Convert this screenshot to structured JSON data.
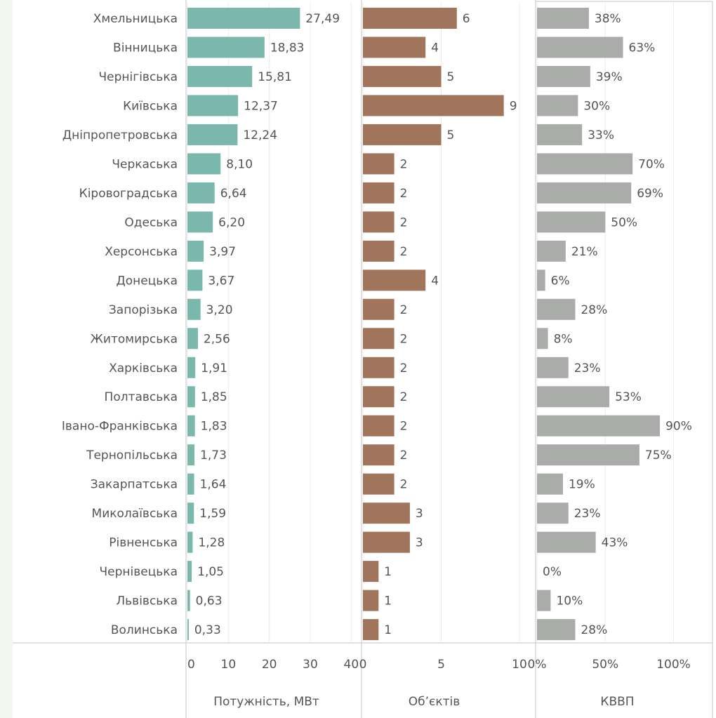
{
  "chart_data": {
    "type": "bar",
    "orientation": "horizontal",
    "grid": true,
    "categories": [
      "Хмельницька",
      "Вінницька",
      "Чернігівська",
      "Київська",
      "Дніпропетровська",
      "Черкаська",
      "Кіровоградська",
      "Одеська",
      "Херсонська",
      "Донецька",
      "Запорізька",
      "Житомирська",
      "Харківська",
      "Полтавська",
      "Івано-Франківська",
      "Тернопільська",
      "Закарпатська",
      "Миколаївська",
      "Рівненська",
      "Чернівецька",
      "Львівська",
      "Волинська"
    ],
    "series": [
      {
        "name": "Потужність, МВт",
        "color": "#7ab8ad",
        "values": [
          27.49,
          18.83,
          15.81,
          12.37,
          12.24,
          8.1,
          6.64,
          6.2,
          3.97,
          3.67,
          3.2,
          2.56,
          1.91,
          1.85,
          1.83,
          1.73,
          1.64,
          1.59,
          1.28,
          1.05,
          0.63,
          0.33
        ],
        "value_labels": [
          "27,49",
          "18,83",
          "15,81",
          "12,37",
          "12,24",
          "8,10",
          "6,64",
          "6,20",
          "3,97",
          "3,67",
          "3,20",
          "2,56",
          "1,91",
          "1,85",
          "1,83",
          "1,73",
          "1,64",
          "1,59",
          "1,28",
          "1,05",
          "0,63",
          "0,33"
        ],
        "xlim": [
          0,
          42
        ],
        "xticks": [
          0,
          10,
          20,
          30,
          40
        ]
      },
      {
        "name": "Об’єктів",
        "color": "#a0755b",
        "values": [
          6,
          4,
          5,
          9,
          5,
          2,
          2,
          2,
          2,
          4,
          2,
          2,
          2,
          2,
          2,
          2,
          2,
          3,
          3,
          1,
          1,
          1
        ],
        "xlim": [
          0,
          10
        ],
        "xticks": [
          0,
          5,
          10
        ]
      },
      {
        "name": "КВВП",
        "color": "#a9aca9",
        "values": [
          38,
          63,
          39,
          30,
          33,
          70,
          69,
          50,
          21,
          6,
          28,
          8,
          23,
          53,
          90,
          75,
          19,
          23,
          43,
          0,
          10,
          28
        ],
        "value_labels": [
          "38%",
          "63%",
          "39%",
          "30%",
          "33%",
          "70%",
          "69%",
          "50%",
          "21%",
          "6%",
          "28%",
          "8%",
          "23%",
          "53%",
          "90%",
          "75%",
          "19%",
          "23%",
          "43%",
          "0%",
          "10%",
          "28%"
        ],
        "xlim": [
          0,
          128
        ],
        "xticks": [
          {
            "value": 0,
            "label": "0%"
          },
          {
            "value": 50,
            "label": "50%"
          },
          {
            "value": 100,
            "label": "100%"
          }
        ]
      }
    ]
  }
}
